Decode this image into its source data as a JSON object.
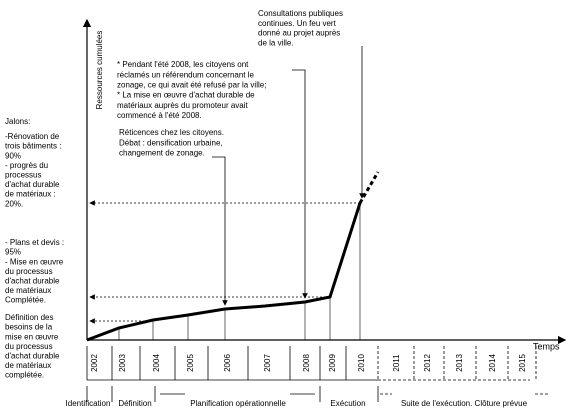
{
  "axis": {
    "y_label": "Ressources cumulées",
    "x_label": "Temps"
  },
  "years": [
    "2002",
    "2003",
    "2004",
    "2005",
    "2006",
    "2007",
    "2008",
    "2009",
    "2010",
    "2011",
    "2012",
    "2013",
    "2014",
    "2015"
  ],
  "phases": [
    "Identification",
    "Définition",
    "Planification opérationnelle",
    "Exécution",
    "Suite de l'exécution. Clôture prévue"
  ],
  "milestones": {
    "title": "Jalons:",
    "items": [
      [
        "-Rénovation de",
        "trois bâtiments :",
        "90%",
        "- progrès du",
        "processus",
        "d'achat durable",
        "de matériaux :",
        "20%."
      ],
      [
        "- Plans et devis :",
        "95%",
        "- Mise en œuvre",
        "du processus",
        "d'achat durable",
        "de matériaux",
        "Complétée."
      ],
      [
        "Définition des",
        "besoins de la",
        "mise en œuvre",
        "du processus",
        "d'achat durable",
        "de matériaux",
        "complétée."
      ]
    ]
  },
  "annotations": [
    [
      "Consultations publiques",
      "continues. Un feu vert",
      "donné au projet auprès",
      "de la ville."
    ],
    [
      "*  Pendant l'été 2008, les citoyens ont",
      "réclamés un référendum concernant le",
      "zonage, ce qui avait été refusé par la ville;",
      "*  La mise en œuvre d'achat durable de",
      "matériaux auprès du promoteur avait",
      "commencé à l'été 2008."
    ],
    [
      "Réticences chez les citoyens.",
      "Débat : densification urbaine,",
      "changement de zonage."
    ]
  ]
}
